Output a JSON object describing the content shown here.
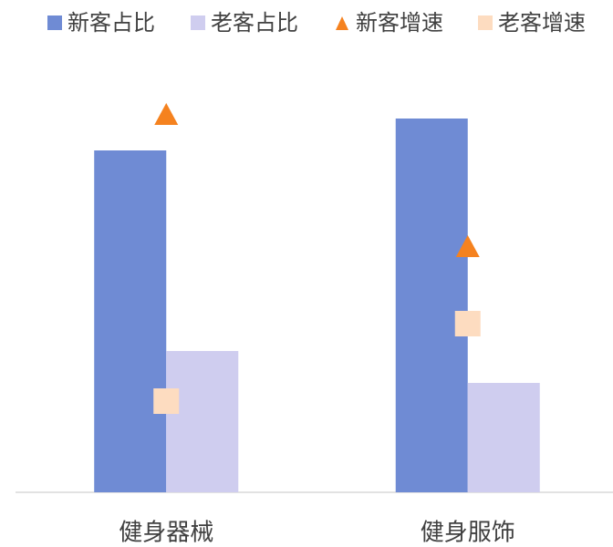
{
  "chart_data": {
    "type": "bar",
    "categories": [
      "健身器械",
      "健身服饰"
    ],
    "series": [
      {
        "name": "新客占比",
        "type": "bar",
        "color": "#6f8bd4",
        "values": [
          75,
          82
        ]
      },
      {
        "name": "老客占比",
        "type": "bar",
        "color": "#cfcdef",
        "values": [
          31,
          24
        ]
      },
      {
        "name": "新客增速",
        "type": "triangle",
        "color": "#f5821f",
        "values": [
          83,
          54
        ]
      },
      {
        "name": "老客增速",
        "type": "square",
        "color": "#fddcc0",
        "values": [
          20,
          37
        ]
      }
    ],
    "ylim": [
      0,
      100
    ]
  }
}
